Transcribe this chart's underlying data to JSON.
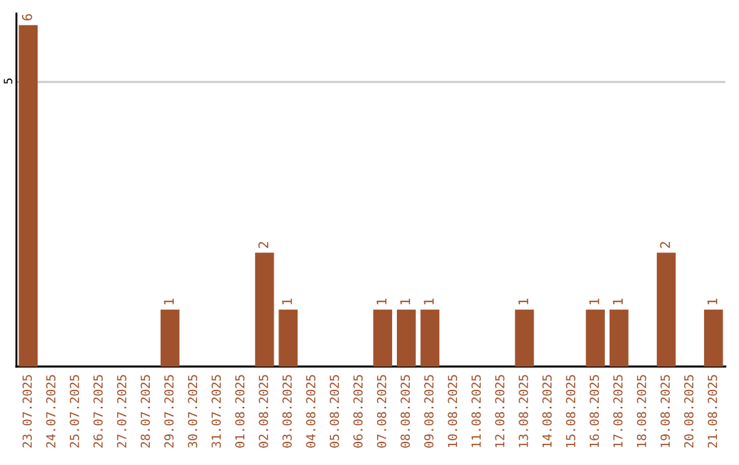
{
  "chart_data": {
    "type": "bar",
    "categories": [
      "23.07.2025",
      "24.07.2025",
      "25.07.2025",
      "26.07.2025",
      "27.07.2025",
      "28.07.2025",
      "29.07.2025",
      "30.07.2025",
      "31.07.2025",
      "01.08.2025",
      "02.08.2025",
      "03.08.2025",
      "04.08.2025",
      "05.08.2025",
      "06.08.2025",
      "07.08.2025",
      "08.08.2025",
      "09.08.2025",
      "10.08.2025",
      "11.08.2025",
      "12.08.2025",
      "13.08.2025",
      "14.08.2025",
      "15.08.2025",
      "16.08.2025",
      "17.08.2025",
      "18.08.2025",
      "19.08.2025",
      "20.08.2025",
      "21.08.2025"
    ],
    "values": [
      6,
      0,
      0,
      0,
      0,
      0,
      1,
      0,
      0,
      0,
      2,
      1,
      0,
      0,
      0,
      1,
      1,
      1,
      0,
      0,
      0,
      1,
      0,
      0,
      1,
      1,
      0,
      2,
      0,
      1
    ],
    "value_labels": [
      "6",
      null,
      null,
      null,
      null,
      null,
      "1",
      null,
      null,
      null,
      "2",
      "1",
      null,
      null,
      null,
      "1",
      "1",
      "1",
      null,
      null,
      null,
      "1",
      null,
      null,
      "1",
      "1",
      null,
      "2",
      null,
      "1"
    ],
    "color": "#a0522d",
    "ylim": [
      0,
      6.2
    ],
    "yticks": [
      5
    ],
    "grid": "y"
  }
}
